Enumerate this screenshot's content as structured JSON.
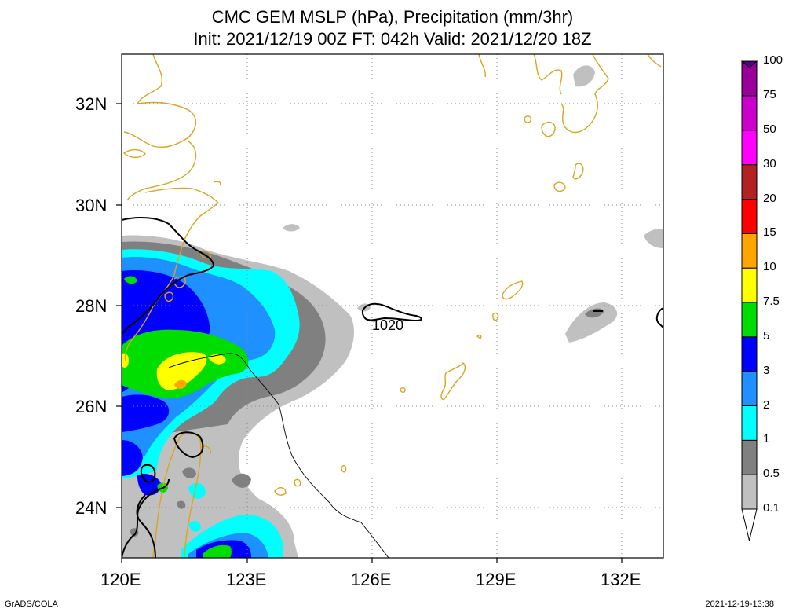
{
  "header": {
    "title_line1": "CMC GEM MSLP (hPa), Precipitation (mm/3hr)",
    "title_line2": "Init: 2021/12/19 00Z  FT: 042h  Valid: 2021/12/20 18Z"
  },
  "axes": {
    "lat_labels": [
      "32N",
      "30N",
      "28N",
      "26N",
      "24N"
    ],
    "lon_labels": [
      "120E",
      "123E",
      "126E",
      "129E",
      "132E"
    ]
  },
  "contour_label": "1020",
  "colorbar": {
    "labels": [
      "0.1",
      "0.5",
      "1",
      "2",
      "3",
      "5",
      "7.5",
      "10",
      "15",
      "20",
      "30",
      "50",
      "75",
      "100"
    ],
    "colors": [
      "#c0c0c0",
      "#808080",
      "#00ffff",
      "#1e90ff",
      "#0000ff",
      "#00dd00",
      "#ffff00",
      "#ffa500",
      "#ff0000",
      "#b22222",
      "#ff00ff",
      "#cc00cc",
      "#990099",
      "#550088"
    ]
  },
  "footer": {
    "left": "GrADS/COLA",
    "right": "2021-12-19-13:38"
  }
}
